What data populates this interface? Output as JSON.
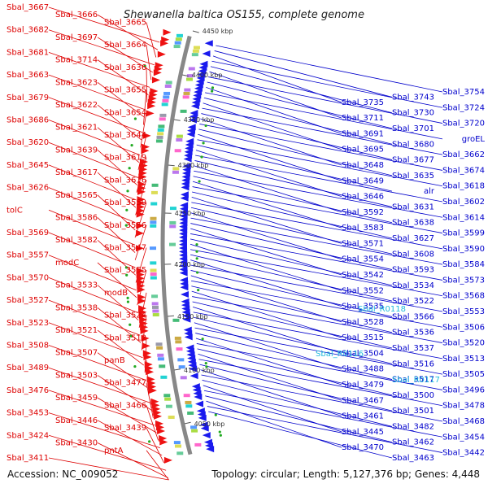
{
  "map": {
    "title": "Shewanella baltica OS155, complete genome",
    "accession": "Accession: NC_009052",
    "topology": "Topology: circular; Length: 5,127,376 bp; Genes: 4,448",
    "colors": {
      "forward_label": "#dd0000",
      "reverse_label": "#0000cc",
      "rna_label": "#22bbdd",
      "backbone": "#888888",
      "forward_feature": "#ee1111",
      "reverse_feature": "#1a1aee"
    },
    "ticks": [
      {
        "label": "4450 kbp"
      },
      {
        "label": "4400 kbp"
      },
      {
        "label": "4350 kbp"
      },
      {
        "label": "4300 kbp"
      },
      {
        "label": "4250 kbp"
      },
      {
        "label": "4200 kbp"
      },
      {
        "label": "4150 kbp"
      },
      {
        "label": "4100 kbp"
      },
      {
        "label": "4050 kbp"
      }
    ],
    "left_labels": [
      "Sbal_3667",
      "Sbal_3666",
      "Sbal_3665",
      "Sbal_3682",
      "Sbal_3697",
      "Sbal_3664",
      "Sbal_3681",
      "Sbal_3714",
      "Sbal_3636",
      "Sbal_3663",
      "Sbal_3623",
      "Sbal_3655",
      "Sbal_3679",
      "Sbal_3622",
      "Sbal_3654",
      "Sbal_3686",
      "Sbal_3621",
      "Sbal_3644",
      "Sbal_3620",
      "Sbal_3639",
      "Sbal_3619",
      "Sbal_3645",
      "Sbal_3617",
      "Sbal_3616",
      "Sbal_3626",
      "Sbal_3565",
      "Sbal_3559",
      "tolC",
      "Sbal_3586",
      "Sbal_3556",
      "Sbal_3569",
      "Sbal_3582",
      "Sbal_3547",
      "Sbal_3557",
      "modC",
      "Sbal_3555",
      "Sbal_3570",
      "Sbal_3533",
      "modB",
      "Sbal_3527",
      "Sbal_3538",
      "Sbal_3524",
      "Sbal_3523",
      "Sbal_3521",
      "Sbal_3512",
      "Sbal_3508",
      "Sbal_3507",
      "panB",
      "Sbal_3489",
      "Sbal_3503",
      "Sbal_3477",
      "Sbal_3476",
      "Sbal_3459",
      "Sbal_3466",
      "Sbal_3453",
      "Sbal_3446",
      "Sbal_3439",
      "Sbal_3424",
      "Sbal_3430",
      "pntA",
      "Sbal_3411"
    ],
    "right_labels": [
      "Sbal_3754",
      "Sbal_3743",
      "Sbal_3735",
      "Sbal_3724",
      "Sbal_3730",
      "Sbal_3711",
      "Sbal_3720",
      "Sbal_3701",
      "Sbal_3691",
      "groEL",
      "Sbal_3680",
      "Sbal_3695",
      "Sbal_3662",
      "Sbal_3677",
      "Sbal_3648",
      "Sbal_3674",
      "Sbal_3635",
      "Sbal_3649",
      "Sbal_3618",
      "alr",
      "Sbal_3646",
      "Sbal_3602",
      "Sbal_3631",
      "Sbal_3592",
      "Sbal_3614",
      "Sbal_3638",
      "Sbal_3583",
      "Sbal_3599",
      "Sbal_3627",
      "Sbal_3571",
      "Sbal_3590",
      "Sbal_3608",
      "Sbal_3554",
      "Sbal_3584",
      "Sbal_3593",
      "Sbal_3542",
      "Sbal_3573",
      "Sbal_3534",
      "Sbal_3552",
      "Sbal_3568",
      "Sbal_3522",
      "Sbal_3535",
      "Sbal_3553",
      "Sbal_3566",
      "Sbal_3528",
      "Sbal_3506",
      "Sbal_3536",
      "Sbal_3515",
      "Sbal_3520",
      "Sbal_3537",
      "Sbal_3504",
      "Sbal_3513",
      "Sbal_3516",
      "Sbal_3488",
      "Sbal_3505",
      "Sbal_3517",
      "Sbal_3479",
      "Sbal_3496",
      "Sbal_3500",
      "Sbal_3467",
      "Sbal_3478",
      "Sbal_3501",
      "Sbal_3461",
      "Sbal_3468",
      "Sbal_3482",
      "Sbal_3445",
      "Sbal_3454",
      "Sbal_3462",
      "Sbal_3470",
      "Sbal_3442",
      "Sbal_3463"
    ],
    "rna_labels": [
      "Sbal_R0118",
      "Sbal_R0116",
      "Sbal_R0117"
    ]
  }
}
